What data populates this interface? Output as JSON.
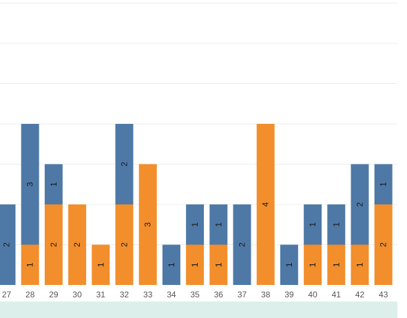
{
  "chart_data": {
    "type": "bar",
    "stacked": true,
    "categories": [
      "27",
      "28",
      "29",
      "30",
      "31",
      "32",
      "33",
      "34",
      "35",
      "36",
      "37",
      "38",
      "39",
      "40",
      "41",
      "42",
      "43"
    ],
    "series": [
      {
        "color": "#f28e2b",
        "values": [
          0,
          1,
          2,
          2,
          1,
          2,
          3,
          0,
          1,
          1,
          0,
          4,
          0,
          1,
          1,
          1,
          2
        ]
      },
      {
        "color": "#4e79a7",
        "values": [
          2,
          3,
          1,
          0,
          0,
          2,
          0,
          1,
          1,
          1,
          2,
          0,
          1,
          1,
          1,
          2,
          1
        ]
      }
    ],
    "ylim": [
      0,
      7
    ],
    "grid": true,
    "footer_band_color": "#dcefeb",
    "gridline_color": "#ececec"
  }
}
